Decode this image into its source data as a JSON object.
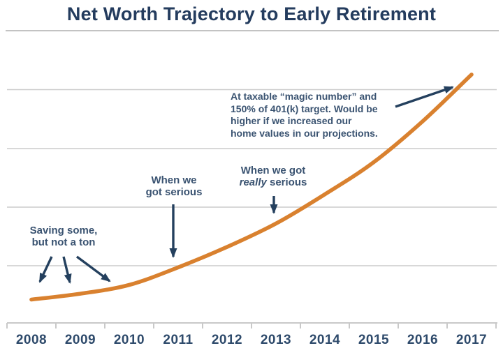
{
  "title": "Net Worth Trajectory to Early Retirement",
  "colors": {
    "title_navy": "#243c5e",
    "annotation_navy": "#3a5371",
    "arrow_navy": "#24405e",
    "line_orange": "#d9812f",
    "gridline_gray": "#cccccc"
  },
  "notes": {
    "saving": {
      "line1": "Saving some,",
      "line2": "but not a ton"
    },
    "serious": {
      "line1": "When we",
      "line2": "got serious"
    },
    "really": {
      "line1": "When we got",
      "italic_word": "really",
      "line2_rest": " serious"
    },
    "magic": {
      "line1": "At taxable “magic number” and",
      "line2": "150% of 401(k) target. Would be",
      "line3": "higher if we increased our",
      "line4": "home values in our projections."
    }
  },
  "chart_data": {
    "type": "line",
    "title": "Net Worth Trajectory to Early Retirement",
    "categories": [
      "2008",
      "2009",
      "2010",
      "2011",
      "2012",
      "2013",
      "2014",
      "2015",
      "2016",
      "2017"
    ],
    "series": [
      {
        "name": "net-worth",
        "relative_values": [
          0.08,
          0.1,
          0.13,
          0.19,
          0.26,
          0.34,
          0.44,
          0.55,
          0.69,
          0.85
        ]
      }
    ],
    "y_axis": {
      "labels_visible": false,
      "range_relative": [
        0,
        1
      ]
    },
    "x_axis": {
      "tick_count": 11,
      "labels_between_ticks": true
    },
    "grid": "horizontal",
    "legend": "none",
    "line_color": "#d9812f",
    "annotations": [
      {
        "text": "Saving some, but not a ton",
        "arrow_count": 3,
        "target": "2008–2010 flat section"
      },
      {
        "text": "When we got serious",
        "arrow_count": 1,
        "target": "2011"
      },
      {
        "text": "When we got really serious",
        "arrow_count": 1,
        "target": "2013"
      },
      {
        "text": "At taxable “magic number” and 150% of 401(k) target. Would be higher if we increased our home values in our projections.",
        "arrow_count": 1,
        "target": "2017 line endpoint"
      }
    ]
  }
}
